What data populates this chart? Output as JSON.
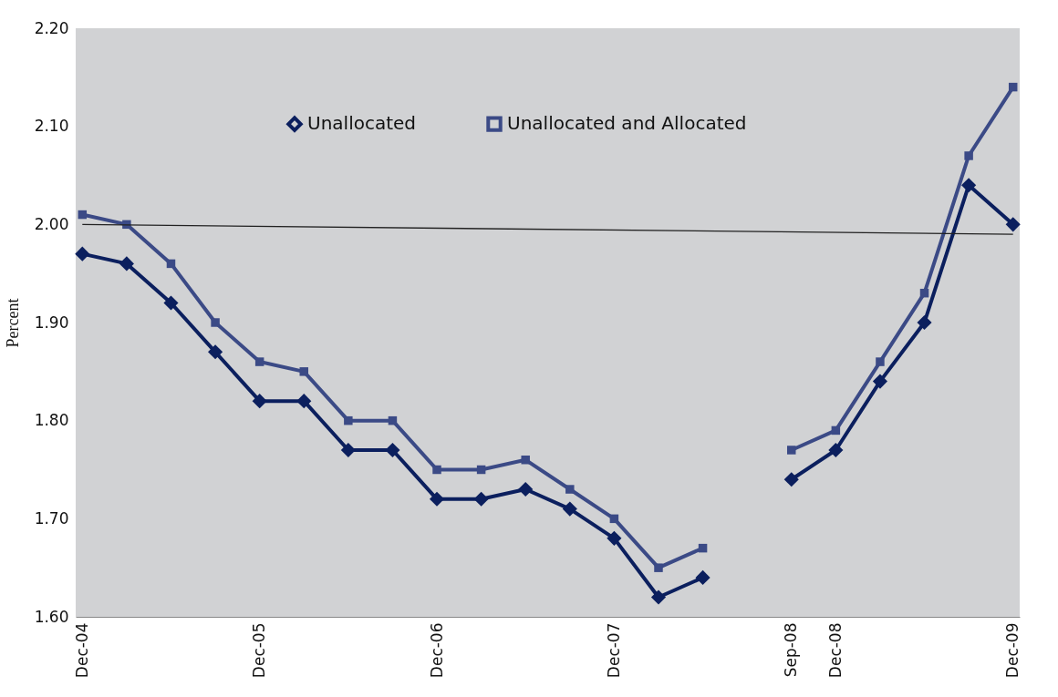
{
  "chart_data": {
    "type": "line",
    "ylabel": "Percent",
    "categories": [
      "Dec-04",
      null,
      null,
      null,
      "Dec-05",
      null,
      null,
      null,
      "Dec-06",
      null,
      null,
      null,
      "Dec-07",
      null,
      null,
      null,
      "Sep-08",
      "Dec-08",
      null,
      null,
      null,
      "Dec-09"
    ],
    "series": [
      {
        "name": "Unallocated",
        "color": "#0b1f5e",
        "marker": "diamond",
        "values": [
          1.97,
          1.96,
          1.92,
          1.87,
          1.82,
          1.82,
          1.77,
          1.77,
          1.72,
          1.72,
          1.73,
          1.71,
          1.68,
          1.62,
          1.64,
          null,
          1.74,
          1.77,
          1.84,
          1.9,
          2.04,
          2.0
        ]
      },
      {
        "name": "Unallocated and Allocated",
        "color": "#3b4a86",
        "marker": "square",
        "values": [
          2.01,
          2.0,
          1.96,
          1.9,
          1.86,
          1.85,
          1.8,
          1.8,
          1.75,
          1.75,
          1.76,
          1.73,
          1.7,
          1.65,
          1.67,
          null,
          1.77,
          1.79,
          1.86,
          1.93,
          2.07,
          2.14
        ]
      },
      {
        "type": "line",
        "color": "#222222",
        "marker": "none",
        "x": [
          "Dec-04",
          "Dec-09"
        ],
        "values": [
          2.0,
          1.99
        ]
      }
    ],
    "ylim": [
      1.6,
      2.2
    ],
    "yticks": [
      {
        "value": 1.6,
        "label": "1.60"
      },
      {
        "value": 1.7,
        "label": "1.70"
      },
      {
        "value": 1.8,
        "label": "1.80"
      },
      {
        "value": 1.9,
        "label": "1.90"
      },
      {
        "value": 2.0,
        "label": "2.00"
      },
      {
        "value": 2.1,
        "label": "2.10"
      },
      {
        "value": 2.2,
        "label": "2.20"
      }
    ],
    "grid": false,
    "legend": "top",
    "line_style": "solid"
  }
}
